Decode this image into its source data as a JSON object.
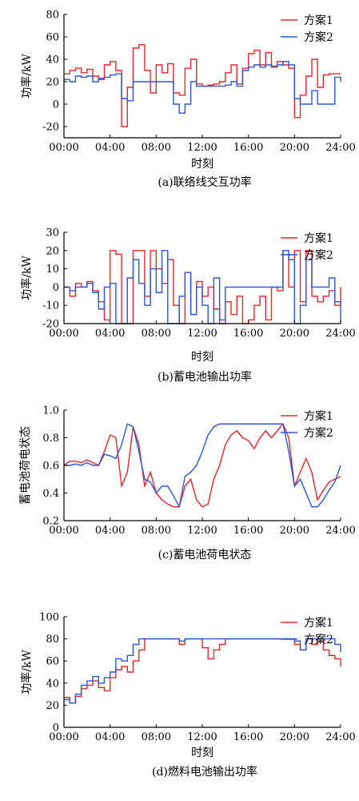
{
  "chart_data": [
    {
      "type": "line",
      "caption": "(a)联络线交互功率",
      "xlabel": "时刻",
      "ylabel": "功率/kW",
      "xlim": [
        0,
        24
      ],
      "ylim": [
        -30,
        80
      ],
      "xticks": [
        0,
        4,
        8,
        12,
        16,
        20,
        24
      ],
      "xtick_labels": [
        "00:00",
        "04:00",
        "08:00",
        "12:00",
        "16:00",
        "20:00",
        "24:00"
      ],
      "yticks": [
        -20,
        0,
        20,
        40,
        60,
        80
      ],
      "legend_position": "top-right",
      "step": true,
      "series": [
        {
          "name": "方案1",
          "color": "#e8262a",
          "x": [
            0,
            0.5,
            1,
            1.5,
            2,
            2.5,
            3,
            3.5,
            4,
            4.5,
            5,
            5.5,
            6,
            6.5,
            7,
            7.5,
            8,
            8.5,
            9,
            9.5,
            10,
            10.5,
            11,
            11.5,
            12,
            12.5,
            13,
            13.5,
            14,
            14.5,
            15,
            15.5,
            16,
            16.5,
            17,
            17.5,
            18,
            18.5,
            19,
            19.5,
            20,
            20.5,
            21,
            21.5,
            22,
            22.5,
            23,
            23.5,
            24
          ],
          "y": [
            27,
            30,
            32,
            28,
            31,
            25,
            22,
            35,
            38,
            30,
            -20,
            15,
            50,
            53,
            30,
            10,
            35,
            28,
            36,
            10,
            8,
            32,
            40,
            18,
            16,
            17,
            18,
            20,
            28,
            35,
            18,
            32,
            45,
            48,
            35,
            46,
            34,
            38,
            35,
            32,
            -12,
            8,
            25,
            40,
            15,
            26,
            27,
            27,
            27
          ]
        },
        {
          "name": "方案2",
          "color": "#2b56d8",
          "x": [
            0,
            0.5,
            1,
            1.5,
            2,
            2.5,
            3,
            3.5,
            4,
            4.5,
            5,
            5.5,
            6,
            6.5,
            7,
            7.5,
            8,
            8.5,
            9,
            9.5,
            10,
            10.5,
            11,
            11.5,
            12,
            12.5,
            13,
            13.5,
            14,
            14.5,
            15,
            15.5,
            16,
            16.5,
            17,
            17.5,
            18,
            18.5,
            19,
            19.5,
            20,
            20.5,
            21,
            21.5,
            22,
            22.5,
            23,
            23.5,
            24
          ],
          "y": [
            22,
            20,
            25,
            24,
            25,
            20,
            23,
            24,
            26,
            27,
            5,
            3,
            20,
            20,
            20,
            20,
            20,
            20,
            20,
            0,
            -8,
            0,
            20,
            16,
            16,
            16,
            16,
            16,
            17,
            20,
            16,
            30,
            33,
            35,
            33,
            35,
            33,
            35,
            38,
            35,
            5,
            0,
            0,
            12,
            0,
            0,
            0,
            24,
            20
          ]
        }
      ]
    },
    {
      "type": "line",
      "caption": "(b)蓄电池输出功率",
      "xlabel": "时刻",
      "ylabel": "功率/kW",
      "xlim": [
        0,
        24
      ],
      "ylim": [
        -20,
        30
      ],
      "xticks": [
        0,
        4,
        8,
        12,
        16,
        20,
        24
      ],
      "xtick_labels": [
        "00:00",
        "04:00",
        "08:00",
        "12:00",
        "16:00",
        "20:00",
        "24:00"
      ],
      "yticks": [
        -20,
        -10,
        0,
        10,
        20,
        30
      ],
      "legend_position": "top-right",
      "step": true,
      "series": [
        {
          "name": "方案1",
          "color": "#e8262a",
          "x": [
            0,
            0.5,
            1,
            1.5,
            2,
            2.5,
            3,
            3.5,
            4,
            4.5,
            5,
            5.5,
            6,
            6.5,
            7,
            7.5,
            8,
            8.5,
            9,
            9.5,
            10,
            10.5,
            11,
            11.5,
            12,
            12.5,
            13,
            13.5,
            14,
            14.5,
            15,
            15.5,
            16,
            16.5,
            17,
            17.5,
            18,
            18.5,
            19,
            19.5,
            20,
            20.5,
            21,
            21.5,
            22,
            22.5,
            23,
            23.5,
            24
          ],
          "y": [
            0,
            -5,
            2,
            0,
            3,
            -2,
            -8,
            -18,
            20,
            18,
            -20,
            -20,
            20,
            20,
            -5,
            20,
            10,
            2,
            15,
            -10,
            -20,
            8,
            -15,
            3,
            -5,
            0,
            -12,
            -20,
            -8,
            -15,
            -5,
            -20,
            -18,
            -10,
            -5,
            -18,
            0,
            -2,
            20,
            0,
            20,
            -8,
            20,
            -5,
            -8,
            -5,
            -2,
            -10,
            0
          ]
        },
        {
          "name": "方案2",
          "color": "#2b56d8",
          "x": [
            0,
            0.5,
            1,
            1.5,
            2,
            2.5,
            3,
            3.5,
            4,
            4.5,
            5,
            5.5,
            6,
            6.5,
            7,
            7.5,
            8,
            8.5,
            9,
            9.5,
            10,
            10.5,
            11,
            11.5,
            12,
            12.5,
            13,
            13.5,
            14,
            14.5,
            15,
            15.5,
            16,
            16.5,
            17,
            17.5,
            18,
            18.5,
            19,
            19.5,
            20,
            20.5,
            21,
            21.5,
            22,
            22.5,
            23,
            23.5,
            24
          ],
          "y": [
            0,
            -2,
            0,
            0,
            2,
            -3,
            -12,
            0,
            2,
            -20,
            -20,
            5,
            15,
            2,
            -10,
            10,
            -3,
            20,
            -20,
            -20,
            -5,
            8,
            -15,
            0,
            -10,
            -20,
            5,
            -18,
            0,
            0,
            0,
            0,
            0,
            0,
            0,
            0,
            0,
            0,
            20,
            15,
            -20,
            -10,
            15,
            0,
            0,
            0,
            5,
            -8,
            -20
          ]
        }
      ]
    },
    {
      "type": "line",
      "caption": "(c)蓄电池荷电状态",
      "xlabel": "",
      "ylabel": "蓄电池荷电状态",
      "xlim": [
        0,
        24
      ],
      "ylim": [
        0.2,
        1.0
      ],
      "xticks": [
        0,
        4,
        8,
        12,
        16,
        20,
        24
      ],
      "xtick_labels": [
        "00:00",
        "04:00",
        "08:00",
        "12:00",
        "16:00",
        "20:00",
        "24:00"
      ],
      "yticks": [
        0.2,
        0.4,
        0.6,
        0.8,
        1.0
      ],
      "legend_position": "top-right",
      "step": false,
      "series": [
        {
          "name": "方案1",
          "color": "#e8262a",
          "x": [
            0,
            0.5,
            1,
            1.5,
            2,
            2.5,
            3,
            3.5,
            4,
            4.5,
            5,
            5.5,
            6,
            6.5,
            7,
            7.5,
            8,
            8.5,
            9,
            9.5,
            10,
            10.5,
            11,
            11.5,
            12,
            12.5,
            13,
            13.5,
            14,
            14.5,
            15,
            15.5,
            16,
            16.5,
            17,
            17.5,
            18,
            18.5,
            19,
            19.5,
            20,
            20.5,
            21,
            21.5,
            22,
            22.5,
            23,
            23.5,
            24
          ],
          "y": [
            0.6,
            0.63,
            0.63,
            0.62,
            0.64,
            0.62,
            0.6,
            0.7,
            0.82,
            0.8,
            0.45,
            0.55,
            0.88,
            0.75,
            0.45,
            0.55,
            0.4,
            0.35,
            0.32,
            0.3,
            0.3,
            0.45,
            0.5,
            0.35,
            0.3,
            0.32,
            0.5,
            0.6,
            0.75,
            0.82,
            0.85,
            0.8,
            0.78,
            0.72,
            0.8,
            0.85,
            0.8,
            0.85,
            0.9,
            0.8,
            0.45,
            0.55,
            0.65,
            0.55,
            0.35,
            0.42,
            0.48,
            0.5,
            0.52
          ]
        },
        {
          "name": "方案2",
          "color": "#2b56d8",
          "x": [
            0,
            0.5,
            1,
            1.5,
            2,
            2.5,
            3,
            3.5,
            4,
            4.5,
            5,
            5.5,
            6,
            6.5,
            7,
            7.5,
            8,
            8.5,
            9,
            9.5,
            10,
            10.5,
            11,
            11.5,
            12,
            12.5,
            13,
            13.5,
            14,
            14.5,
            15,
            15.5,
            16,
            16.5,
            17,
            17.5,
            18,
            18.5,
            19,
            19.5,
            20,
            20.5,
            21,
            21.5,
            22,
            22.5,
            23,
            23.5,
            24
          ],
          "y": [
            0.6,
            0.6,
            0.61,
            0.6,
            0.62,
            0.6,
            0.6,
            0.68,
            0.67,
            0.65,
            0.75,
            0.9,
            0.88,
            0.7,
            0.5,
            0.48,
            0.4,
            0.45,
            0.45,
            0.38,
            0.3,
            0.52,
            0.55,
            0.6,
            0.7,
            0.82,
            0.88,
            0.9,
            0.9,
            0.9,
            0.9,
            0.9,
            0.9,
            0.9,
            0.9,
            0.9,
            0.9,
            0.9,
            0.9,
            0.7,
            0.45,
            0.5,
            0.4,
            0.3,
            0.3,
            0.35,
            0.42,
            0.48,
            0.6
          ]
        }
      ]
    },
    {
      "type": "line",
      "caption": "(d)燃料电池输出功率",
      "xlabel": "时刻",
      "ylabel": "功率/kW",
      "xlim": [
        0,
        24
      ],
      "ylim": [
        0,
        100
      ],
      "xticks": [
        0,
        4,
        8,
        12,
        16,
        20,
        24
      ],
      "xtick_labels": [
        "00:00",
        "04:00",
        "08:00",
        "12:00",
        "16:00",
        "20:00",
        "24:00"
      ],
      "yticks": [
        0,
        20,
        40,
        60,
        80,
        100
      ],
      "legend_position": "top-right",
      "step": true,
      "series": [
        {
          "name": "方案1",
          "color": "#e8262a",
          "x": [
            0,
            0.5,
            1,
            1.5,
            2,
            2.5,
            3,
            3.5,
            4,
            4.5,
            5,
            5.5,
            6,
            6.5,
            7,
            7.5,
            8,
            8.5,
            9,
            9.5,
            10,
            10.5,
            11,
            11.5,
            12,
            12.5,
            13,
            13.5,
            14,
            14.5,
            15,
            15.5,
            16,
            16.5,
            17,
            17.5,
            18,
            18.5,
            19,
            19.5,
            20,
            20.5,
            21,
            21.5,
            22,
            22.5,
            23,
            23.5,
            24
          ],
          "y": [
            27,
            22,
            28,
            35,
            38,
            42,
            36,
            33,
            45,
            52,
            55,
            50,
            60,
            70,
            80,
            80,
            80,
            80,
            80,
            80,
            75,
            80,
            80,
            80,
            72,
            62,
            70,
            75,
            80,
            80,
            80,
            80,
            80,
            80,
            80,
            80,
            80,
            80,
            80,
            80,
            75,
            70,
            80,
            75,
            80,
            70,
            65,
            62,
            55
          ]
        },
        {
          "name": "方案2",
          "color": "#2b56d8",
          "x": [
            0,
            0.5,
            1,
            1.5,
            2,
            2.5,
            3,
            3.5,
            4,
            4.5,
            5,
            5.5,
            6,
            6.5,
            7,
            7.5,
            8,
            8.5,
            9,
            9.5,
            10,
            10.5,
            11,
            11.5,
            12,
            12.5,
            13,
            13.5,
            14,
            14.5,
            15,
            15.5,
            16,
            16.5,
            17,
            17.5,
            18,
            18.5,
            19,
            19.5,
            20,
            20.5,
            21,
            21.5,
            22,
            22.5,
            23,
            23.5,
            24
          ],
          "y": [
            25,
            22,
            30,
            38,
            42,
            46,
            40,
            45,
            50,
            62,
            60,
            65,
            75,
            80,
            80,
            80,
            80,
            80,
            80,
            80,
            78,
            80,
            80,
            80,
            80,
            80,
            80,
            80,
            80,
            80,
            80,
            80,
            80,
            80,
            80,
            80,
            80,
            80,
            80,
            80,
            78,
            70,
            80,
            80,
            80,
            80,
            80,
            75,
            68
          ]
        }
      ]
    }
  ]
}
